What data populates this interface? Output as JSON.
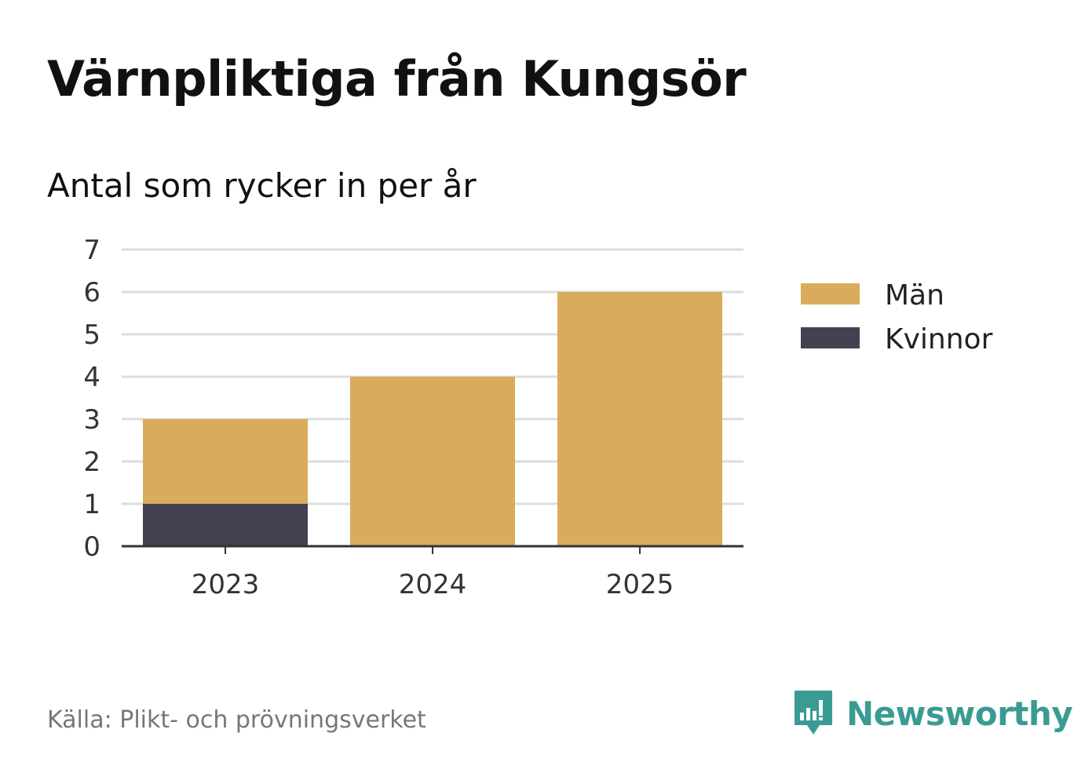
{
  "title": "Värnpliktiga från Kungsör",
  "subtitle": "Antal som rycker in per år",
  "source": "Källa: Plikt- och prövningsverket",
  "brand": {
    "name": "Newsworthy",
    "icon": "newsworthy-logo-icon",
    "color": "#3a9b93"
  },
  "chart_data": {
    "type": "bar",
    "stacked": true,
    "categories": [
      "2023",
      "2024",
      "2025"
    ],
    "series": [
      {
        "name": "Kvinnor",
        "values": [
          1,
          0,
          0
        ],
        "color": "#42414f"
      },
      {
        "name": "Män",
        "values": [
          2,
          4,
          6
        ],
        "color": "#d9ac5b"
      }
    ],
    "legend_order": [
      "Män",
      "Kvinnor"
    ],
    "legend_position": "right",
    "ylim": [
      0,
      7
    ],
    "yticks": [
      "0",
      "1",
      "2",
      "3",
      "4",
      "5",
      "6",
      "7"
    ],
    "grid": true,
    "xlabel": "",
    "ylabel": ""
  }
}
